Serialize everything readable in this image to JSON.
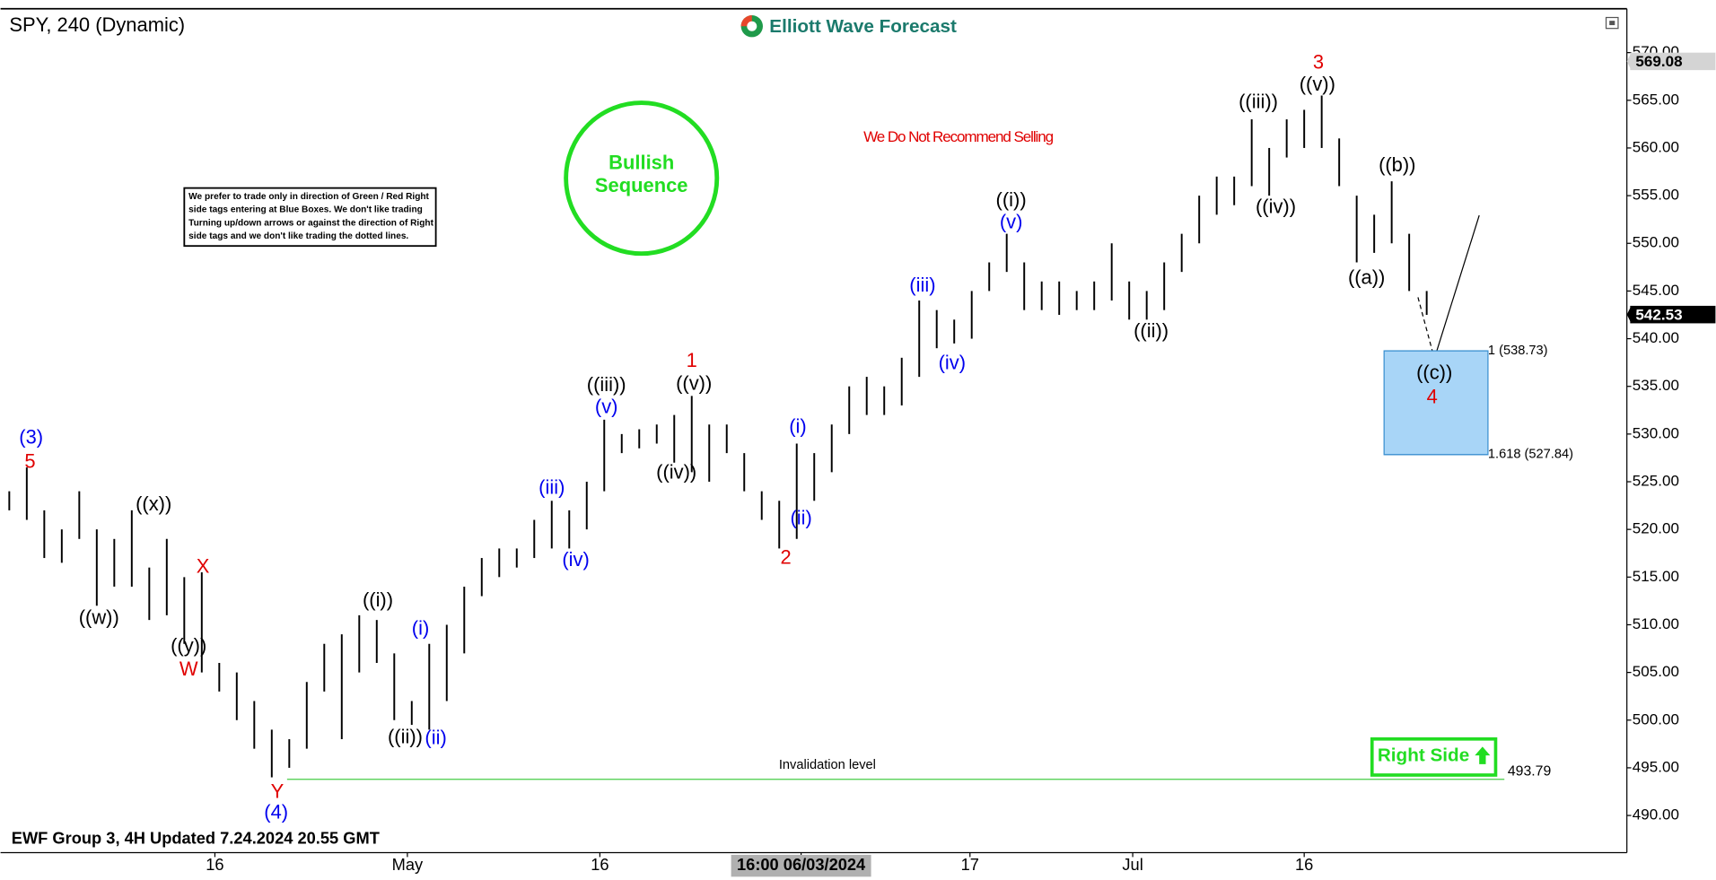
{
  "header": {
    "symbol": "SPY, 240 (Dynamic)",
    "logo": "Elliott Wave Forecast"
  },
  "chart_data": {
    "type": "ohlc",
    "color": "#000000",
    "high": [
      524,
      526.5,
      522,
      520,
      524,
      520,
      519,
      522,
      516,
      519,
      515,
      515.5,
      506,
      505,
      502,
      499,
      498,
      504,
      508,
      509,
      511,
      510.5,
      507,
      502,
      508,
      510,
      514,
      517,
      518,
      518,
      521,
      523,
      522,
      525,
      531.5,
      530,
      530.5,
      531,
      532,
      534,
      531,
      531,
      528,
      524,
      523,
      529,
      528,
      531,
      535,
      536,
      535,
      538,
      544,
      543,
      542,
      545,
      548,
      551,
      548,
      546,
      546,
      545,
      546,
      550,
      546,
      545,
      548,
      551,
      555,
      557,
      557,
      563,
      560,
      563,
      564,
      565.5,
      561,
      555,
      553,
      556.5,
      551,
      545
    ],
    "low": [
      522,
      521,
      517,
      516.5,
      519,
      512,
      514,
      514,
      510.5,
      511,
      508,
      505,
      503,
      500,
      497,
      494,
      495,
      497,
      503,
      498,
      505,
      506,
      500,
      499.5,
      499,
      502,
      507,
      513,
      515,
      516,
      517,
      518,
      518,
      520,
      524,
      528,
      528.5,
      529,
      527,
      526,
      525,
      528,
      524,
      521,
      518,
      519,
      523,
      526,
      530,
      532,
      532,
      533,
      536,
      539,
      539.5,
      540,
      545,
      547,
      543,
      543,
      542.5,
      543,
      543,
      544,
      542,
      542,
      543,
      547,
      550,
      553,
      554,
      556,
      555,
      559,
      560,
      560,
      556,
      548,
      549,
      550,
      545,
      542.5
    ],
    "xlim": [
      -0.5,
      92.44
    ],
    "xticks": [
      {
        "value": 11.75,
        "label": "16"
      },
      {
        "value": 22.75,
        "label": "May"
      },
      {
        "value": 33.75,
        "label": "16"
      },
      {
        "value": 45.25,
        "label": "16:00 06/03/2024"
      },
      {
        "value": 54.9,
        "label": "17"
      },
      {
        "value": 64.2,
        "label": "Jul"
      },
      {
        "value": 74,
        "label": "16"
      }
    ],
    "highlight_tick": 3,
    "ylim": [
      486.1,
      574.6
    ],
    "yticks": [
      {
        "value": 490,
        "label": "490.00"
      },
      {
        "value": 495,
        "label": "495.00"
      },
      {
        "value": 500,
        "label": "500.00"
      },
      {
        "value": 505,
        "label": "505.00"
      },
      {
        "value": 510,
        "label": "510.00"
      },
      {
        "value": 515,
        "label": "515.00"
      },
      {
        "value": 520,
        "label": "520.00"
      },
      {
        "value": 525,
        "label": "525.00"
      },
      {
        "value": 530,
        "label": "530.00"
      },
      {
        "value": 535,
        "label": "535.00"
      },
      {
        "value": 540,
        "label": "540.00"
      },
      {
        "value": 545,
        "label": "545.00"
      },
      {
        "value": 550,
        "label": "550.00"
      },
      {
        "value": 555,
        "label": "555.00"
      },
      {
        "value": 560,
        "label": "560.00"
      },
      {
        "value": 565,
        "label": "565.00"
      },
      {
        "value": 570,
        "label": "570.00"
      }
    ],
    "price_tags": [
      {
        "value": 569.08,
        "color": "#d4d4d4",
        "text_color": "#000000"
      },
      {
        "value": 542.53,
        "color": "#000000",
        "text_color": "#ffffff"
      }
    ],
    "fib_box": {
      "color": "#a8d5f7",
      "levels": [
        {
          "value": 538.73,
          "label": "1 (538.73)"
        },
        {
          "value": 527.84,
          "label": "1.618 (527.84)"
        }
      ]
    },
    "invalidation": {
      "value": 493.79,
      "label": "Invalidation level",
      "color": "#44cc44"
    },
    "wave_labels": [
      {
        "text": "(3)",
        "color": "#0000ee"
      },
      {
        "text": "5",
        "color": "#e00000"
      },
      {
        "text": "((x))",
        "color": "#000000"
      },
      {
        "text": "((w))",
        "color": "#000000"
      },
      {
        "text": "X",
        "color": "#e00000"
      },
      {
        "text": "((y))",
        "color": "#000000"
      },
      {
        "text": "W",
        "color": "#e00000"
      },
      {
        "text": "Y",
        "color": "#e00000"
      },
      {
        "text": "(4)",
        "color": "#0000ee"
      },
      {
        "text": "((i))",
        "color": "#000000"
      },
      {
        "text": "(i)",
        "color": "#0000ee"
      },
      {
        "text": "((ii))",
        "color": "#000000"
      },
      {
        "text": "(ii)",
        "color": "#0000ee"
      },
      {
        "text": "(iii)",
        "color": "#0000ee"
      },
      {
        "text": "(iv)",
        "color": "#0000ee"
      },
      {
        "text": "((iii))",
        "color": "#000000"
      },
      {
        "text": "(v)",
        "color": "#0000ee"
      },
      {
        "text": "1",
        "color": "#e00000"
      },
      {
        "text": "((v))",
        "color": "#000000"
      },
      {
        "text": "((iv))",
        "color": "#000000"
      },
      {
        "text": "(i)",
        "color": "#0000ee"
      },
      {
        "text": "(ii)",
        "color": "#0000ee"
      },
      {
        "text": "2",
        "color": "#e00000"
      },
      {
        "text": "(iii)",
        "color": "#0000ee"
      },
      {
        "text": "(iv)",
        "color": "#0000ee"
      },
      {
        "text": "((i))",
        "color": "#000000"
      },
      {
        "text": "(v)",
        "color": "#0000ee"
      },
      {
        "text": "((ii))",
        "color": "#000000"
      },
      {
        "text": "((iii))",
        "color": "#000000"
      },
      {
        "text": "((iv))",
        "color": "#000000"
      },
      {
        "text": "3",
        "color": "#e00000"
      },
      {
        "text": "((v))",
        "color": "#000000"
      },
      {
        "text": "((b))",
        "color": "#000000"
      },
      {
        "text": "((a))",
        "color": "#000000"
      },
      {
        "text": "((c))",
        "color": "#000000"
      },
      {
        "text": "4",
        "color": "#e00000"
      }
    ]
  },
  "annotations": {
    "bullish": [
      "Bullish",
      "Sequence"
    ],
    "notice": "We Do Not Recommend Selling",
    "note": [
      "We prefer to trade only in direction of Green / Red Right",
      "side tags entering at Blue Boxes. We don't like trading",
      "Turning up/down arrows or against the direction of Right",
      "side tags and we don't like trading the dotted lines."
    ],
    "right_side": "Right Side",
    "footer": "EWF Group 3, 4H Updated 7.24.2024 20.55 GMT"
  }
}
